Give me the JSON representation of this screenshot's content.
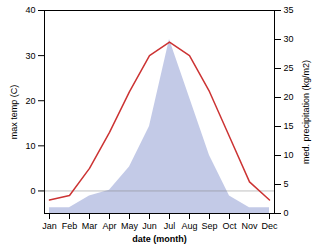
{
  "chart_data": {
    "type": "line",
    "categories": [
      "Jan",
      "Feb",
      "Mar",
      "Apr",
      "May",
      "Jun",
      "Jul",
      "Aug",
      "Sep",
      "Oct",
      "Nov",
      "Dec"
    ],
    "xlabel": "date (month)",
    "ylabel": "max temp (C)",
    "y2label": "med. precipitation (kg/m2)",
    "series": [
      {
        "type": "area",
        "axis": "y2",
        "color": "#aab4dd",
        "values": [
          1,
          1,
          3,
          4,
          8,
          15,
          30,
          20,
          10,
          3,
          1,
          1
        ]
      },
      {
        "type": "line",
        "color": "#cc3333",
        "values": [
          -2,
          -1,
          5,
          13,
          22,
          30,
          33,
          30,
          22,
          12,
          2,
          -2
        ]
      }
    ],
    "ylim": [
      -5,
      40
    ],
    "yticks": [
      0,
      10,
      20,
      30,
      40
    ],
    "y2lim": [
      0,
      35
    ],
    "y2ticks": [
      0,
      5,
      10,
      15,
      20,
      25,
      30,
      35
    ],
    "hlines": [
      0
    ],
    "grid": false
  }
}
